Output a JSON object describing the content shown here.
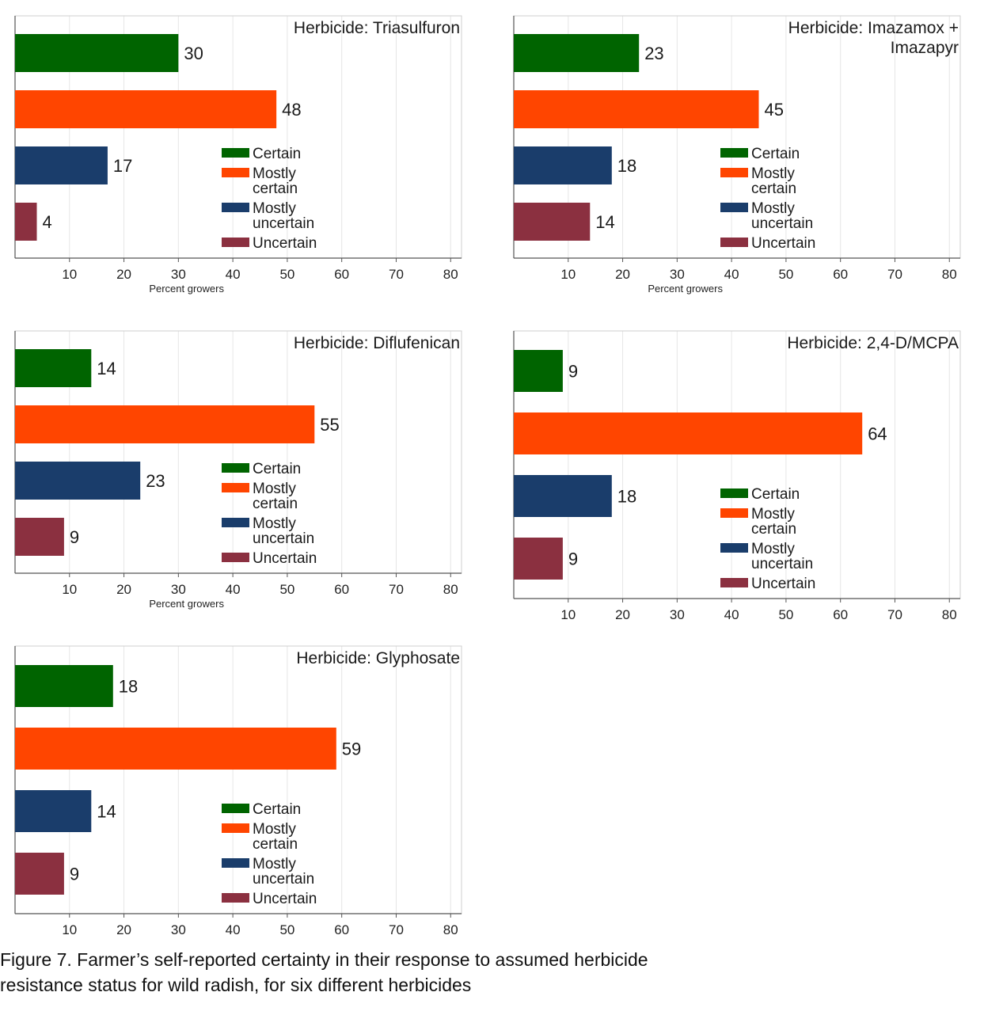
{
  "colors": {
    "certain": "#006400",
    "mostly_certain": "#ff4500",
    "mostly_uncertain": "#1a3d6b",
    "uncertain": "#8b3040",
    "grid": "#e6e6e6",
    "axis": "#555555"
  },
  "chart_data": [
    {
      "type": "bar",
      "orientation": "horizontal",
      "title_lines": [
        "Herbicide: Triasulfuron"
      ],
      "categories": [
        "Certain",
        "Mostly certain",
        "Mostly uncertain",
        "Uncertain"
      ],
      "values": [
        30,
        48,
        17,
        4
      ],
      "xlabel": "Percent growers",
      "xticks": [
        10,
        20,
        30,
        40,
        50,
        60,
        70,
        80
      ],
      "xlim": [
        0,
        82
      ],
      "grid": true,
      "legend_position": "bottom-center",
      "legend_lines": [
        [
          "Certain"
        ],
        [
          "Mostly",
          "certain"
        ],
        [
          "Mostly",
          "uncertain"
        ],
        [
          "Uncertain"
        ]
      ]
    },
    {
      "type": "bar",
      "orientation": "horizontal",
      "title_lines": [
        "Herbicide: Imazamox +",
        "Imazapyr"
      ],
      "categories": [
        "Certain",
        "Mostly certain",
        "Mostly uncertain",
        "Uncertain"
      ],
      "values": [
        23,
        45,
        18,
        14
      ],
      "xlabel": "Percent growers",
      "xticks": [
        10,
        20,
        30,
        40,
        50,
        60,
        70,
        80
      ],
      "xlim": [
        0,
        82
      ],
      "grid": true,
      "legend_position": "bottom-center",
      "legend_lines": [
        [
          "Certain"
        ],
        [
          "Mostly",
          "certain"
        ],
        [
          "Mostly",
          "uncertain"
        ],
        [
          "Uncertain"
        ]
      ]
    },
    {
      "type": "bar",
      "orientation": "horizontal",
      "title_lines": [
        "Herbicide: Diflufenican"
      ],
      "categories": [
        "Certain",
        "Mostly certain",
        "Mostly uncertain",
        "Uncertain"
      ],
      "values": [
        14,
        55,
        23,
        9
      ],
      "xlabel": "Percent growers",
      "xticks": [
        10,
        20,
        30,
        40,
        50,
        60,
        70,
        80
      ],
      "xlim": [
        0,
        82
      ],
      "grid": true,
      "legend_position": "bottom-center",
      "legend_lines": [
        [
          "Certain"
        ],
        [
          "Mostly",
          "certain"
        ],
        [
          "Mostly",
          "uncertain"
        ],
        [
          "Uncertain"
        ]
      ]
    },
    {
      "type": "bar",
      "orientation": "horizontal",
      "title_lines": [
        "Herbicide: 2,4-D/MCPA"
      ],
      "categories": [
        "Certain",
        "Mostly certain",
        "Mostly uncertain",
        "Uncertain"
      ],
      "values": [
        9,
        64,
        18,
        9
      ],
      "xlabel": "",
      "xticks": [
        10,
        20,
        30,
        40,
        50,
        60,
        70,
        80
      ],
      "xlim": [
        0,
        82
      ],
      "grid": true,
      "legend_position": "bottom-center",
      "legend_lines": [
        [
          "Certain"
        ],
        [
          "Mostly",
          "certain"
        ],
        [
          "Mostly",
          "uncertain"
        ],
        [
          "Uncertain"
        ]
      ]
    },
    {
      "type": "bar",
      "orientation": "horizontal",
      "title_lines": [
        "Herbicide: Glyphosate"
      ],
      "categories": [
        "Certain",
        "Mostly certain",
        "Mostly uncertain",
        "Uncertain"
      ],
      "values": [
        18,
        59,
        14,
        9
      ],
      "xlabel": "",
      "xticks": [
        10,
        20,
        30,
        40,
        50,
        60,
        70,
        80
      ],
      "xlim": [
        0,
        82
      ],
      "grid": true,
      "legend_position": "bottom-center",
      "legend_lines": [
        [
          "Certain"
        ],
        [
          "Mostly",
          "certain"
        ],
        [
          "Mostly",
          "uncertain"
        ],
        [
          "Uncertain"
        ]
      ]
    }
  ],
  "caption": {
    "line1": "Figure 7. Farmer’s self-reported certainty in their response to assumed herbicide",
    "line2": "resistance status for wild radish, for six different herbicides"
  }
}
